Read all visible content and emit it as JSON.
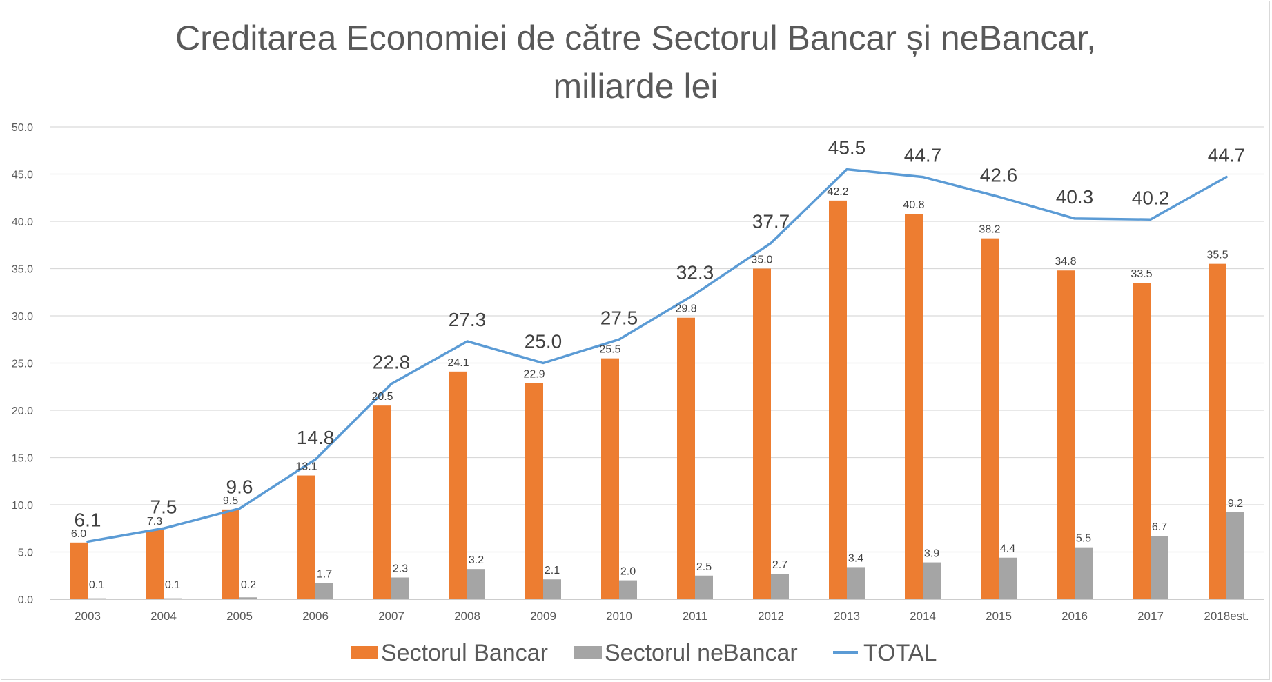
{
  "chart_data": {
    "type": "bar",
    "title_lines": [
      "Creditarea Economiei de către Sectorul Bancar și neBancar,",
      "miliarde lei"
    ],
    "categories": [
      "2003",
      "2004",
      "2005",
      "2006",
      "2007",
      "2008",
      "2009",
      "2010",
      "2011",
      "2012",
      "2013",
      "2014",
      "2015",
      "2016",
      "2017",
      "2018est."
    ],
    "series": [
      {
        "name": "Sectorul Bancar",
        "kind": "bar",
        "color": "#ED7D31",
        "values": [
          6.0,
          7.3,
          9.5,
          13.1,
          20.5,
          24.1,
          22.9,
          25.5,
          29.8,
          35.0,
          42.2,
          40.8,
          38.2,
          34.8,
          33.5,
          35.5
        ]
      },
      {
        "name": "Sectorul neBancar",
        "kind": "bar",
        "color": "#A5A5A5",
        "values": [
          0.1,
          0.1,
          0.2,
          1.7,
          2.3,
          3.2,
          2.1,
          2.0,
          2.5,
          2.7,
          3.4,
          3.9,
          4.4,
          5.5,
          6.7,
          9.2
        ]
      },
      {
        "name": "TOTAL",
        "kind": "line",
        "color": "#5B9BD5",
        "values": [
          6.1,
          7.5,
          9.6,
          14.8,
          22.8,
          27.3,
          25.0,
          27.5,
          32.3,
          37.7,
          45.5,
          44.7,
          42.6,
          40.3,
          40.2,
          44.7
        ]
      }
    ],
    "ylim": [
      0,
      50
    ],
    "yticks": [
      0,
      5,
      10,
      15,
      20,
      25,
      30,
      35,
      40,
      45,
      50
    ],
    "grid": true,
    "legend": "bottom",
    "gridline_color": "#d9d9d9"
  }
}
